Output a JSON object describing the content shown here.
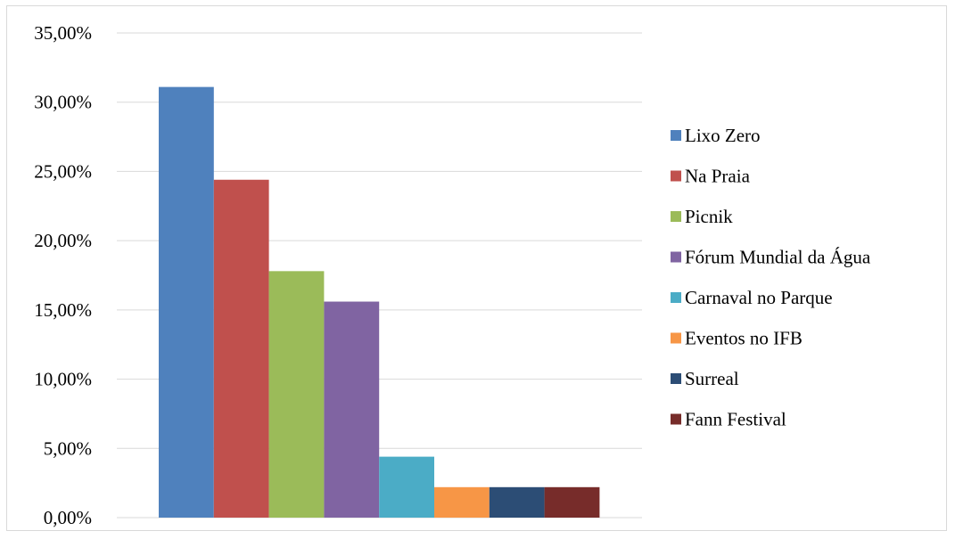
{
  "chart_data": {
    "type": "bar",
    "title": "",
    "xlabel": "",
    "ylabel": "",
    "ylim": [
      0,
      35
    ],
    "y_ticks": [
      0,
      5,
      10,
      15,
      20,
      25,
      30,
      35
    ],
    "y_tick_labels": [
      "0,00%",
      "5,00%",
      "10,00%",
      "15,00%",
      "20,00%",
      "25,00%",
      "30,00%",
      "35,00%"
    ],
    "grid": true,
    "legend_position": "right",
    "series": [
      {
        "name": "Lixo Zero",
        "value": 31.1,
        "color": "#4F81BD"
      },
      {
        "name": "Na Praia",
        "value": 24.4,
        "color": "#C0504D"
      },
      {
        "name": "Picnik",
        "value": 17.8,
        "color": "#9BBB59"
      },
      {
        "name": "Fórum Mundial da Água",
        "value": 15.6,
        "color": "#8064A2"
      },
      {
        "name": "Carnaval no Parque",
        "value": 4.4,
        "color": "#4BACC6"
      },
      {
        "name": "Eventos no IFB",
        "value": 2.2,
        "color": "#F79646"
      },
      {
        "name": "Surreal",
        "value": 2.2,
        "color": "#2C4D75"
      },
      {
        "name": "Fann Festival",
        "value": 2.2,
        "color": "#772C2A"
      }
    ]
  }
}
